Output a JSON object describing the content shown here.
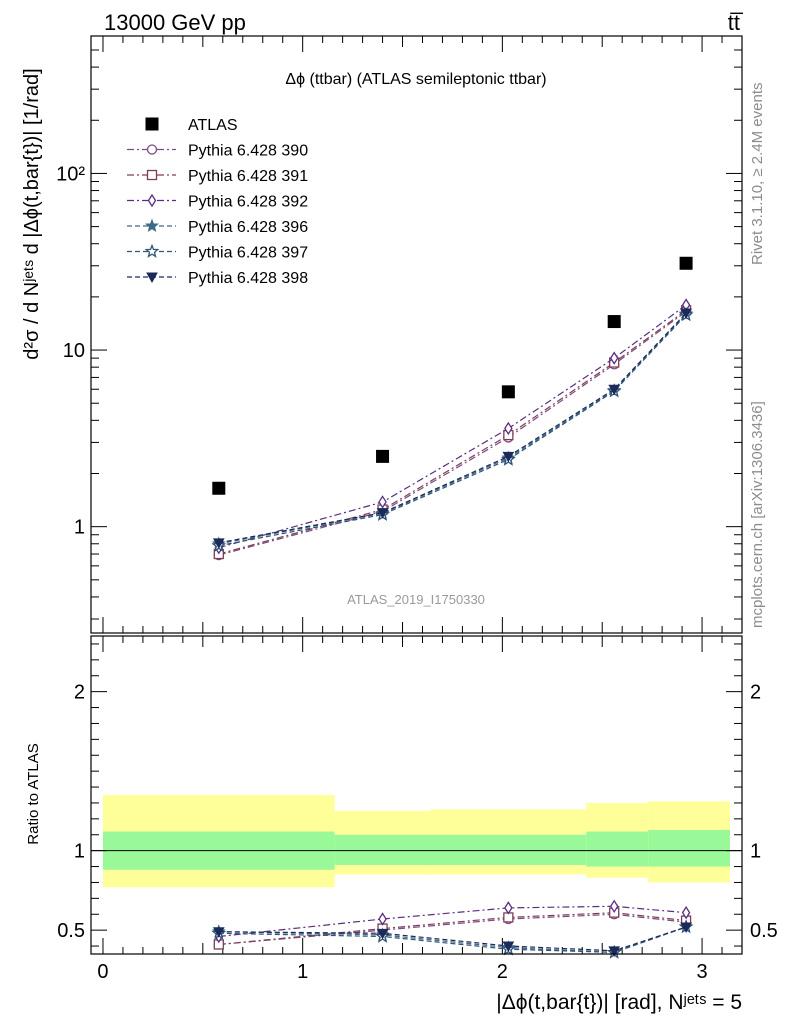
{
  "header": {
    "energy_label": "13000 GeV pp",
    "process_label": "tt̅"
  },
  "side_labels": {
    "rivet": "Rivet 3.1.10, ≥ 2.4M events",
    "mcplots": "mcplots.cern.ch [arXiv:1306.3436]"
  },
  "chart_data": [
    {
      "type": "scatter",
      "title": "Δϕ (ttbar) (ATLAS semileptonic ttbar)",
      "ylabel": "d²σ / d Nʲᵉᵗˢ d |Δϕ(t,bar{t})| [1/rad]",
      "watermark": "ATLAS_2019_I1750330",
      "yscale": "log",
      "xlim": [
        -0.06,
        3.2
      ],
      "ylim": [
        0.25,
        600
      ],
      "y_ticks": [
        {
          "value": 1,
          "label": "1"
        },
        {
          "value": 10,
          "label": "10"
        },
        {
          "value": 100,
          "label": "10²"
        }
      ],
      "x": [
        0.58,
        1.4,
        2.03,
        2.56,
        2.92
      ],
      "legend_position": "top-left",
      "series": [
        {
          "name": "ATLAS",
          "color": "#000000",
          "marker": "square",
          "values": [
            1.65,
            2.5,
            5.8,
            14.5,
            31
          ]
        },
        {
          "name": "Pythia 6.428 390",
          "color": "#7b4a82",
          "marker": "circle",
          "dash": "dashdot",
          "values": [
            0.69,
            1.22,
            3.2,
            8.3,
            16.5
          ]
        },
        {
          "name": "Pythia 6.428 391",
          "color": "#7d3f58",
          "marker": "square-open",
          "dash": "dashdot",
          "values": [
            0.7,
            1.25,
            3.3,
            8.5,
            16.8
          ]
        },
        {
          "name": "Pythia 6.428 392",
          "color": "#5a2d82",
          "marker": "diamond",
          "dash": "dashdot",
          "values": [
            0.76,
            1.38,
            3.6,
            9.0,
            18.0
          ]
        },
        {
          "name": "Pythia 6.428 396",
          "color": "#3d6a86",
          "marker": "star-filled",
          "dash": "dashed",
          "values": [
            0.8,
            1.19,
            2.45,
            5.9,
            16.0
          ]
        },
        {
          "name": "Pythia 6.428 397",
          "color": "#2f5478",
          "marker": "star-open",
          "dash": "dashed",
          "values": [
            0.78,
            1.17,
            2.4,
            5.85,
            15.8
          ]
        },
        {
          "name": "Pythia 6.428 398",
          "color": "#1c2a5a",
          "marker": "triangle-down",
          "dash": "dashed",
          "values": [
            0.81,
            1.2,
            2.5,
            6.0,
            16.2
          ]
        }
      ]
    },
    {
      "type": "line",
      "ylabel": "Ratio to ATLAS",
      "xlabel": "|Δϕ(t,bar{t})| [rad], Nʲᵉᵗˢ = 5",
      "xlim": [
        -0.06,
        3.2
      ],
      "ylim": [
        0.35,
        2.35
      ],
      "x_ticks": [
        0,
        1,
        2,
        3
      ],
      "y_ticks": [
        0.5,
        1,
        2
      ],
      "x": [
        0.58,
        1.4,
        2.03,
        2.56,
        2.92
      ],
      "bins": [
        {
          "lo": 0.0,
          "hi": 1.16,
          "inner": [
            0.88,
            1.12
          ],
          "outer": [
            0.77,
            1.35
          ]
        },
        {
          "lo": 1.16,
          "hi": 1.64,
          "inner": [
            0.91,
            1.1
          ],
          "outer": [
            0.85,
            1.25
          ]
        },
        {
          "lo": 1.64,
          "hi": 2.42,
          "inner": [
            0.91,
            1.1
          ],
          "outer": [
            0.85,
            1.26
          ]
        },
        {
          "lo": 2.42,
          "hi": 2.73,
          "inner": [
            0.9,
            1.12
          ],
          "outer": [
            0.83,
            1.3
          ]
        },
        {
          "lo": 2.73,
          "hi": 3.14,
          "inner": [
            0.9,
            1.13
          ],
          "outer": [
            0.8,
            1.31
          ]
        }
      ],
      "series": [
        {
          "name": "Pythia 6.428 390",
          "color": "#7b4a82",
          "dash": "dashdot",
          "marker": "circle",
          "values": [
            0.41,
            0.5,
            0.57,
            0.6,
            0.55
          ]
        },
        {
          "name": "Pythia 6.428 391",
          "color": "#7d3f58",
          "dash": "dashdot",
          "marker": "square-open",
          "values": [
            0.41,
            0.51,
            0.58,
            0.61,
            0.56
          ]
        },
        {
          "name": "Pythia 6.428 392",
          "color": "#5a2d82",
          "dash": "dashdot",
          "marker": "diamond",
          "values": [
            0.46,
            0.57,
            0.64,
            0.65,
            0.61
          ]
        },
        {
          "name": "Pythia 6.428 396",
          "color": "#3d6a86",
          "dash": "dashed",
          "marker": "star-filled",
          "values": [
            0.49,
            0.47,
            0.39,
            0.36,
            0.52
          ]
        },
        {
          "name": "Pythia 6.428 397",
          "color": "#2f5478",
          "dash": "dashed",
          "marker": "star-open",
          "values": [
            0.48,
            0.46,
            0.38,
            0.36,
            0.52
          ]
        },
        {
          "name": "Pythia 6.428 398",
          "color": "#1c2a5a",
          "dash": "dashed",
          "marker": "triangle-down",
          "values": [
            0.49,
            0.48,
            0.4,
            0.37,
            0.52
          ]
        }
      ]
    }
  ]
}
